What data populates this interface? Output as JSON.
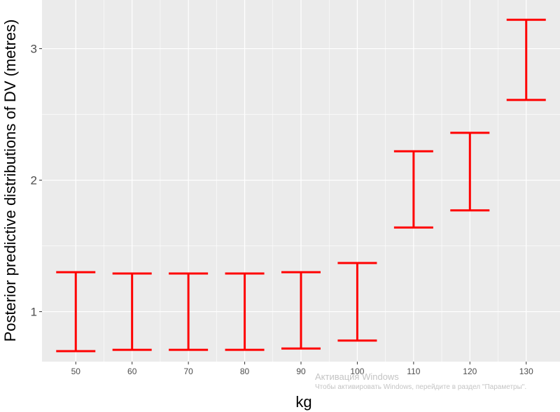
{
  "chart_data": {
    "type": "errorbar",
    "xlabel": "kg",
    "ylabel": "Posterior predictive distributions of DV (metres)",
    "x": [
      50,
      60,
      70,
      80,
      90,
      100,
      110,
      120,
      130
    ],
    "lower": [
      0.7,
      0.71,
      0.71,
      0.71,
      0.72,
      0.78,
      1.64,
      1.77,
      2.61
    ],
    "upper": [
      1.3,
      1.29,
      1.29,
      1.29,
      1.3,
      1.37,
      2.22,
      2.36,
      3.22
    ],
    "ylim": [
      0.62,
      3.37
    ],
    "xlim": [
      44,
      136
    ],
    "yticks": [
      1,
      2,
      3
    ],
    "xticks": [
      50,
      60,
      70,
      80,
      90,
      100,
      110,
      120,
      130
    ],
    "grid": true,
    "colors": {
      "bar": "#ff0000",
      "panel": "#ebebeb",
      "grid": "#ffffff"
    }
  },
  "watermark": {
    "title": "Активация Windows",
    "subtitle": "Чтобы активировать Windows, перейдите в раздел \"Параметры\"."
  }
}
